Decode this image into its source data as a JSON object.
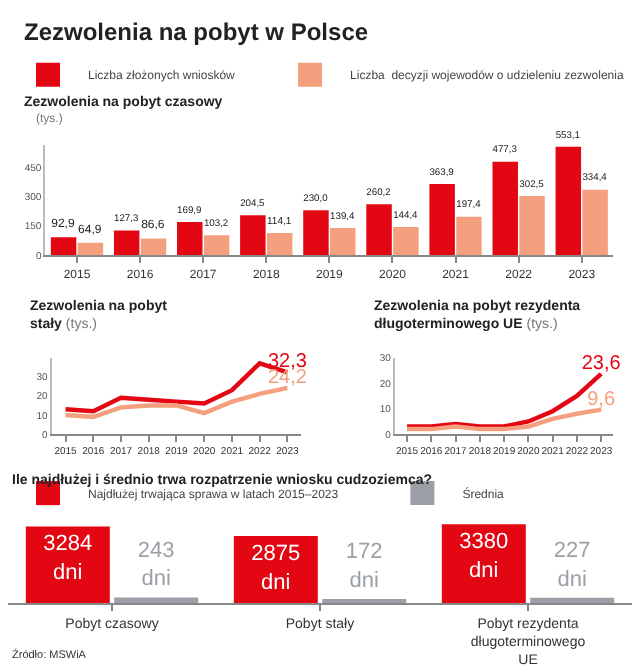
{
  "chart_data": [
    {
      "type": "bar",
      "title": "Zezwolenia na pobyt w Polsce",
      "subtitle": "Zezwolenia na pobyt czasowy",
      "ylabel": "(tys.)",
      "categories": [
        "2015",
        "2016",
        "2017",
        "2018",
        "2019",
        "2020",
        "2021",
        "2022",
        "2023"
      ],
      "ylim": [
        0,
        560
      ],
      "yticks": [
        0,
        150,
        300,
        450
      ],
      "legend": "top",
      "grid": false,
      "series": [
        {
          "name": "Liczba złożonych wniosków",
          "color": "#e30613",
          "values": [
            92.9,
            127.3,
            169.9,
            204.5,
            230.0,
            260.2,
            363.9,
            477.3,
            553.1
          ],
          "value_labels": [
            "92,9",
            "127,3",
            "169,9",
            "204,5",
            "230,0",
            "260,2",
            "363,9",
            "477,3",
            "553,1"
          ]
        },
        {
          "name": "Liczba  decyzji wojewodów o udzieleniu zezwolenia",
          "color": "#f4a07e",
          "values": [
            64.9,
            86.6,
            103.2,
            114.1,
            139.4,
            144.4,
            197.4,
            302.5,
            334.4
          ],
          "value_labels": [
            "64,9",
            "86,6",
            "103,2",
            "114,1",
            "139,4",
            "144,4",
            "197,4",
            "302,5",
            "334,4"
          ]
        }
      ]
    },
    {
      "type": "line",
      "title": "Zezwolenia na pobyt stały",
      "ylabel": "(tys.)",
      "categories": [
        "2015",
        "2016",
        "2017",
        "2018",
        "2019",
        "2020",
        "2021",
        "2022",
        "2023"
      ],
      "ylim": [
        0,
        40
      ],
      "yticks": [
        0,
        10,
        20,
        30
      ],
      "grid": false,
      "marker": "none",
      "series": [
        {
          "color": "#e30613",
          "values": [
            13,
            12,
            19,
            18,
            17,
            16,
            23,
            37,
            32.3
          ],
          "value_labels": [
            null,
            null,
            null,
            null,
            null,
            null,
            null,
            null,
            "32,3"
          ]
        },
        {
          "color": "#f4a07e",
          "values": [
            10,
            9,
            14,
            15,
            15,
            11,
            17,
            21,
            24.2
          ],
          "value_labels": [
            null,
            null,
            null,
            null,
            null,
            null,
            null,
            null,
            "24,2"
          ]
        }
      ]
    },
    {
      "type": "line",
      "title": "Zezwolenia na pobyt rezydenta długoterminowego UE",
      "ylabel": "(tys.)",
      "categories": [
        "2015",
        "2016",
        "2017",
        "2018",
        "2019",
        "2020",
        "2021",
        "2022",
        "2023"
      ],
      "ylim": [
        0,
        30
      ],
      "yticks": [
        0,
        10,
        20,
        30
      ],
      "grid": false,
      "marker": "none",
      "series": [
        {
          "color": "#e30613",
          "values": [
            3,
            3,
            4,
            3,
            3,
            5,
            9,
            15,
            23.6
          ],
          "value_labels": [
            null,
            null,
            null,
            null,
            null,
            null,
            null,
            null,
            "23,6"
          ]
        },
        {
          "color": "#f4a07e",
          "values": [
            2,
            2,
            3,
            2,
            2,
            3,
            6,
            8,
            9.6
          ],
          "value_labels": [
            null,
            null,
            null,
            null,
            null,
            null,
            null,
            null,
            "9,6"
          ]
        }
      ]
    },
    {
      "type": "bar",
      "title": "Ile najdłużej i średnio trwa rozpatrzenie wniosku cudzoziemca?",
      "categories": [
        "Pobyt czasowy",
        "Pobyt stały",
        "Pobyt rezydenta długoterminowego UE"
      ],
      "tick_labels": "x",
      "legend": "top left",
      "grid": false,
      "annotations": [
        "Źródło: MSWiA"
      ],
      "series": [
        {
          "name": "Najdłużej trwająca sprawa w latach 2015–2023",
          "color": "#e30613",
          "values": [
            3284,
            2875,
            3380
          ],
          "value_labels": [
            "3284 dni",
            "2875 dni",
            "3380 dni"
          ]
        },
        {
          "name": "Średnia",
          "color": "#9aa0a6",
          "values": [
            243,
            172,
            227
          ],
          "value_labels": [
            "243 dni",
            "172 dni",
            "227 dni"
          ]
        }
      ]
    }
  ]
}
